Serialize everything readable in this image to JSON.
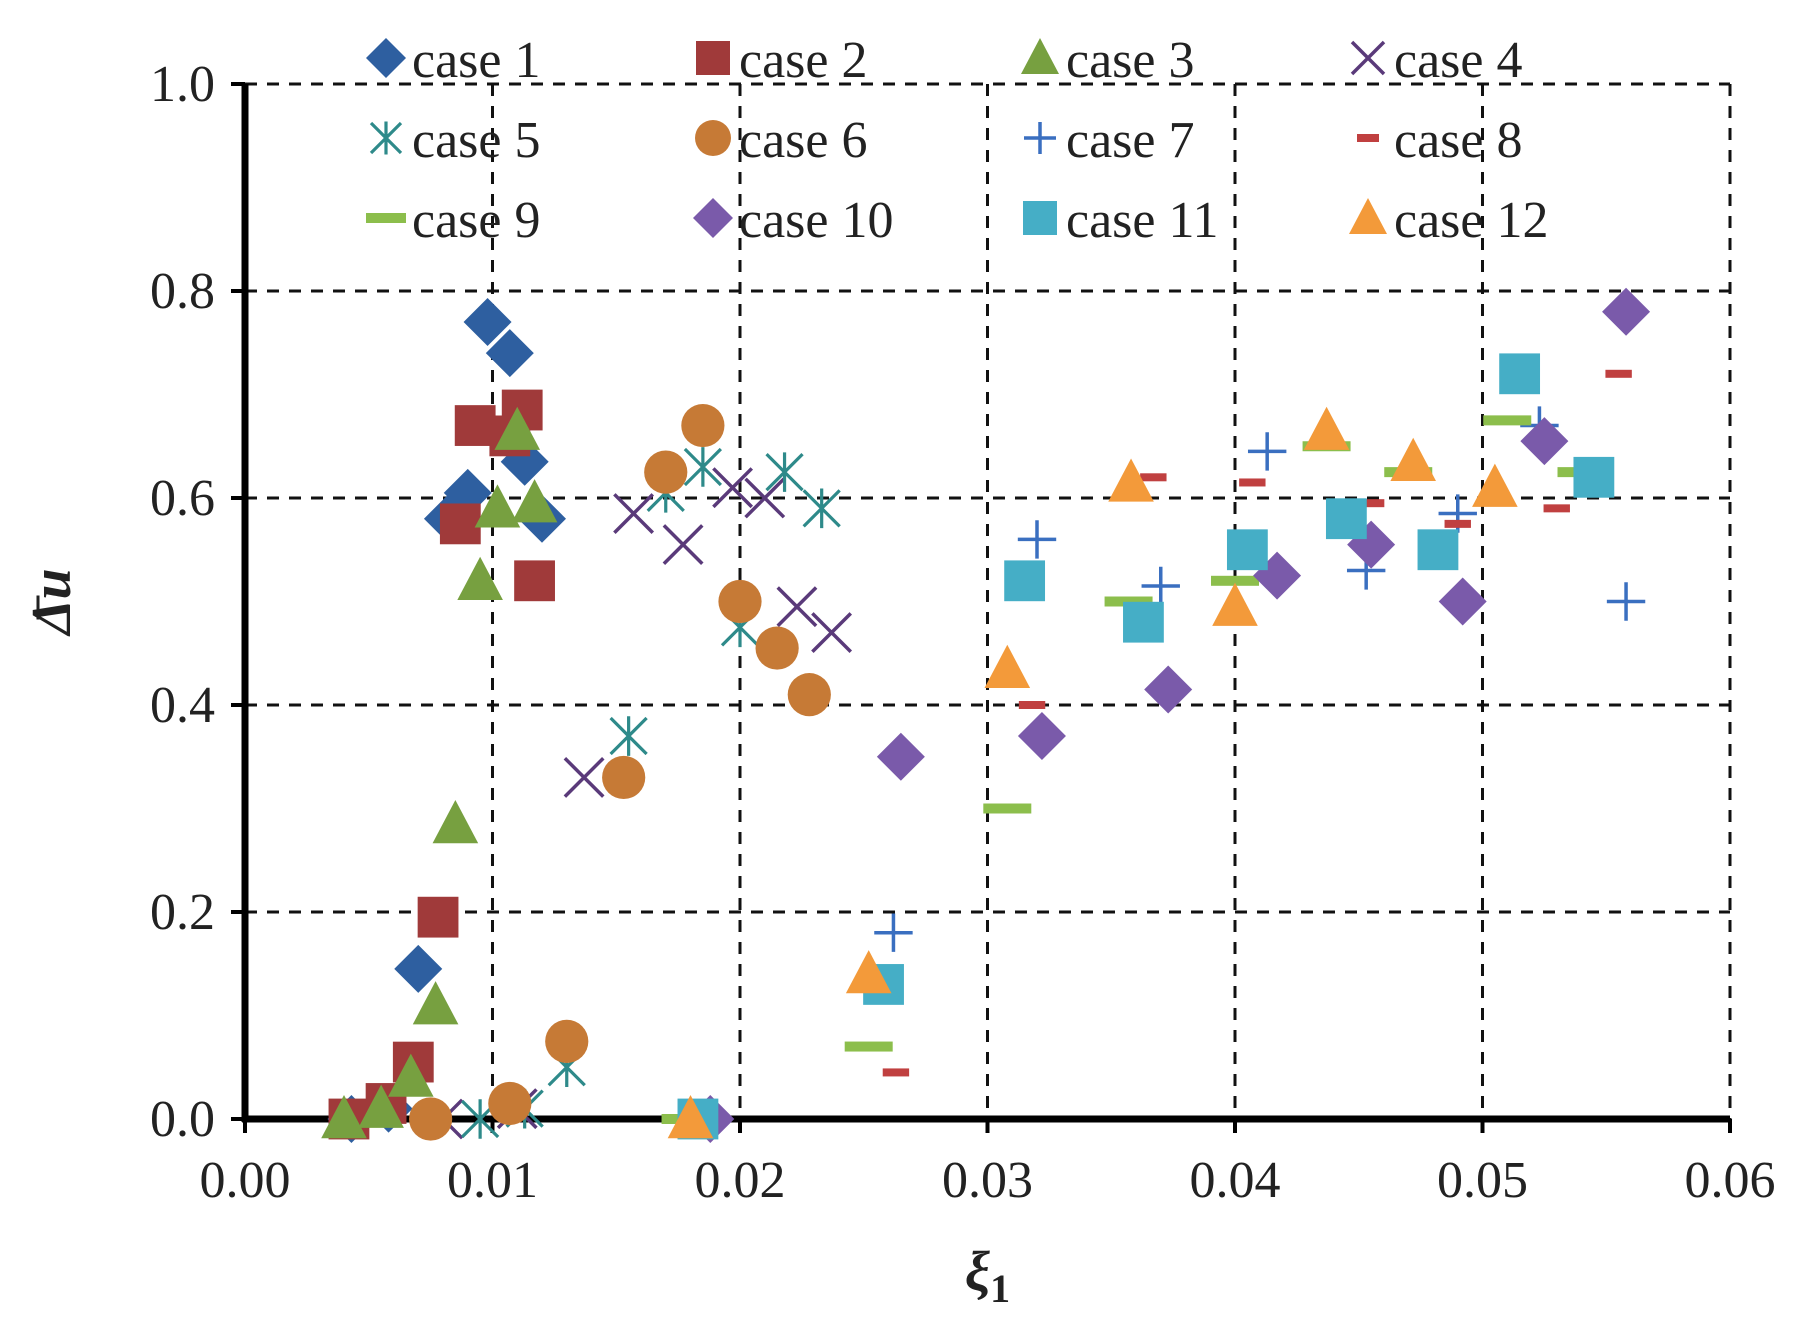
{
  "chart_data": {
    "type": "scatter",
    "xlabel": "ξ",
    "xlabel_sub": "1",
    "ylabel": "Δu",
    "xlim": [
      0,
      0.06
    ],
    "ylim": [
      0,
      1.0
    ],
    "x_ticks": [
      "0.00",
      "0.01",
      "0.02",
      "0.03",
      "0.04",
      "0.05",
      "0.06"
    ],
    "y_ticks": [
      "0.0",
      "0.2",
      "0.4",
      "0.6",
      "0.8",
      "1.0"
    ],
    "x_tick_values": [
      0,
      0.01,
      0.02,
      0.03,
      0.04,
      0.05,
      0.06
    ],
    "y_tick_values": [
      0,
      0.2,
      0.4,
      0.6,
      0.8,
      1.0
    ],
    "grid": true,
    "legend_position": "top",
    "series": [
      {
        "name": "case 1",
        "marker": "diamond",
        "color": "#2E5FA0",
        "points": [
          [
            0.0043,
            0.0
          ],
          [
            0.0058,
            0.01
          ],
          [
            0.007,
            0.145
          ],
          [
            0.0082,
            0.58
          ],
          [
            0.009,
            0.605
          ],
          [
            0.0098,
            0.77
          ],
          [
            0.0107,
            0.74
          ],
          [
            0.0113,
            0.635
          ],
          [
            0.012,
            0.58
          ]
        ]
      },
      {
        "name": "case 2",
        "marker": "square",
        "color": "#A03A3A",
        "points": [
          [
            0.0042,
            0.0
          ],
          [
            0.0057,
            0.015
          ],
          [
            0.0068,
            0.055
          ],
          [
            0.0078,
            0.195
          ],
          [
            0.0087,
            0.575
          ],
          [
            0.0093,
            0.67
          ],
          [
            0.0107,
            0.66
          ],
          [
            0.0112,
            0.685
          ],
          [
            0.0117,
            0.52
          ]
        ]
      },
      {
        "name": "case 3",
        "marker": "triangle",
        "color": "#77A040",
        "points": [
          [
            0.004,
            0.0
          ],
          [
            0.0055,
            0.01
          ],
          [
            0.0067,
            0.04
          ],
          [
            0.0077,
            0.11
          ],
          [
            0.0085,
            0.285
          ],
          [
            0.0095,
            0.52
          ],
          [
            0.0102,
            0.59
          ],
          [
            0.011,
            0.665
          ],
          [
            0.0117,
            0.595
          ]
        ]
      },
      {
        "name": "case 4",
        "marker": "x",
        "color": "#5A3A7A",
        "points": [
          [
            0.008,
            0.0
          ],
          [
            0.011,
            0.01
          ],
          [
            0.0137,
            0.33
          ],
          [
            0.0157,
            0.585
          ],
          [
            0.0177,
            0.555
          ],
          [
            0.0197,
            0.61
          ],
          [
            0.021,
            0.6
          ],
          [
            0.0223,
            0.495
          ],
          [
            0.0237,
            0.47
          ]
        ]
      },
      {
        "name": "case 5",
        "marker": "asterisk",
        "color": "#2E8A8A",
        "points": [
          [
            0.0095,
            0.0
          ],
          [
            0.0113,
            0.01
          ],
          [
            0.013,
            0.05
          ],
          [
            0.0155,
            0.37
          ],
          [
            0.017,
            0.605
          ],
          [
            0.0185,
            0.63
          ],
          [
            0.02,
            0.475
          ],
          [
            0.0218,
            0.625
          ],
          [
            0.0233,
            0.59
          ]
        ]
      },
      {
        "name": "case 6",
        "marker": "circle",
        "color": "#C67A36",
        "points": [
          [
            0.0075,
            0.0
          ],
          [
            0.0107,
            0.015
          ],
          [
            0.013,
            0.075
          ],
          [
            0.0153,
            0.33
          ],
          [
            0.017,
            0.625
          ],
          [
            0.0185,
            0.67
          ],
          [
            0.02,
            0.5
          ],
          [
            0.0215,
            0.455
          ],
          [
            0.0228,
            0.41
          ]
        ]
      },
      {
        "name": "case 7",
        "marker": "plus",
        "color": "#3A6FC0",
        "points": [
          [
            0.018,
            0.0
          ],
          [
            0.0262,
            0.18
          ],
          [
            0.032,
            0.56
          ],
          [
            0.037,
            0.515
          ],
          [
            0.0413,
            0.645
          ],
          [
            0.0453,
            0.53
          ],
          [
            0.049,
            0.585
          ],
          [
            0.0523,
            0.67
          ],
          [
            0.0558,
            0.5
          ]
        ]
      },
      {
        "name": "case 8",
        "marker": "dash",
        "color": "#C04040",
        "points": [
          [
            0.0185,
            0.0
          ],
          [
            0.0263,
            0.045
          ],
          [
            0.0318,
            0.4
          ],
          [
            0.0367,
            0.62
          ],
          [
            0.0407,
            0.615
          ],
          [
            0.0455,
            0.595
          ],
          [
            0.049,
            0.575
          ],
          [
            0.053,
            0.59
          ],
          [
            0.0555,
            0.72
          ]
        ]
      },
      {
        "name": "case 9",
        "marker": "dash-long",
        "color": "#8CBE4C",
        "points": [
          [
            0.0178,
            0.0
          ],
          [
            0.0252,
            0.07
          ],
          [
            0.0308,
            0.3
          ],
          [
            0.0357,
            0.5
          ],
          [
            0.04,
            0.52
          ],
          [
            0.0437,
            0.65
          ],
          [
            0.047,
            0.625
          ],
          [
            0.051,
            0.675
          ],
          [
            0.054,
            0.625
          ]
        ]
      },
      {
        "name": "case 10",
        "marker": "diamond",
        "color": "#7A5AAA",
        "points": [
          [
            0.0188,
            0.0
          ],
          [
            0.0265,
            0.35
          ],
          [
            0.0322,
            0.37
          ],
          [
            0.0373,
            0.415
          ],
          [
            0.0417,
            0.525
          ],
          [
            0.0455,
            0.555
          ],
          [
            0.0492,
            0.5
          ],
          [
            0.0525,
            0.655
          ],
          [
            0.0558,
            0.78
          ]
        ]
      },
      {
        "name": "case 11",
        "marker": "square",
        "color": "#45AEC6",
        "points": [
          [
            0.0183,
            0.0
          ],
          [
            0.0258,
            0.13
          ],
          [
            0.0315,
            0.52
          ],
          [
            0.0363,
            0.48
          ],
          [
            0.0405,
            0.55
          ],
          [
            0.0445,
            0.58
          ],
          [
            0.0482,
            0.55
          ],
          [
            0.0515,
            0.72
          ],
          [
            0.0545,
            0.62
          ]
        ]
      },
      {
        "name": "case 12",
        "marker": "triangle",
        "color": "#F39A3A",
        "points": [
          [
            0.018,
            0.0
          ],
          [
            0.0252,
            0.14
          ],
          [
            0.0308,
            0.435
          ],
          [
            0.0358,
            0.615
          ],
          [
            0.04,
            0.495
          ],
          [
            0.0437,
            0.665
          ],
          [
            0.0472,
            0.635
          ],
          [
            0.0505,
            0.61
          ]
        ]
      }
    ]
  }
}
